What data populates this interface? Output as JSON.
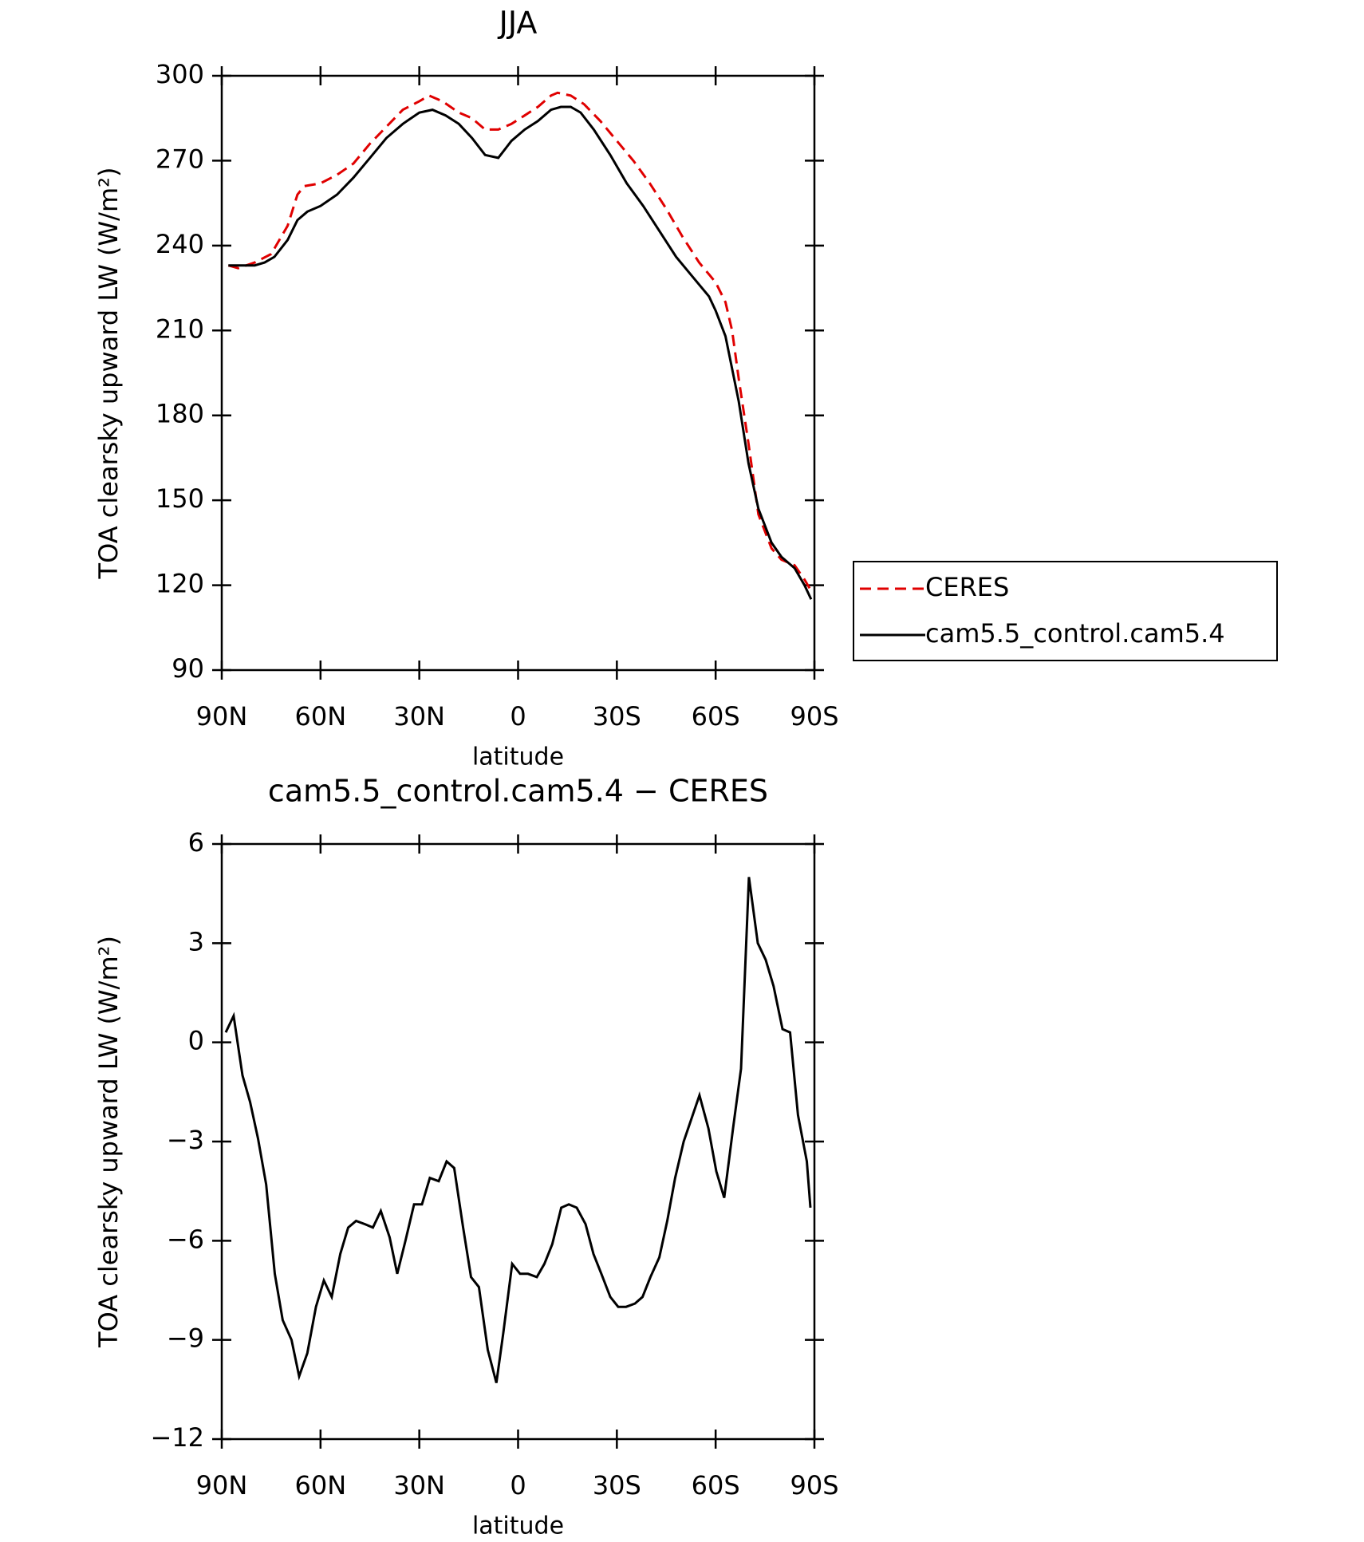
{
  "chart_data": [
    {
      "type": "line",
      "title": "JJA",
      "xlabel": "latitude",
      "ylabel": "TOA clearsky upward LW (W/m²)",
      "xlim": [
        90,
        -90
      ],
      "xticks": [
        {
          "value": 90,
          "label": "90N"
        },
        {
          "value": 60,
          "label": "60N"
        },
        {
          "value": 30,
          "label": "30N"
        },
        0,
        {
          "value": -30,
          "label": "30S"
        },
        {
          "value": -60,
          "label": "60S"
        },
        {
          "value": -90,
          "label": "90S"
        }
      ],
      "ylim": [
        90,
        300
      ],
      "yticks": [
        90,
        120,
        150,
        180,
        210,
        240,
        270,
        300
      ],
      "legend": "right",
      "series": [
        {
          "name": "CERES",
          "color": "#e00000",
          "dash": true,
          "x": [
            88,
            85,
            80,
            75,
            70,
            67,
            65,
            60,
            55,
            50,
            45,
            40,
            35,
            30,
            27,
            23,
            18,
            14,
            10,
            6,
            2,
            -2,
            -6,
            -10,
            -12,
            -16,
            -20,
            -25,
            -30,
            -35,
            -40,
            -45,
            -50,
            -55,
            -60,
            -63,
            -65,
            -67,
            -70,
            -73,
            -77,
            -80,
            -84,
            -87,
            -89
          ],
          "values": [
            233,
            232,
            234,
            237,
            247,
            258,
            261,
            262,
            265,
            269,
            276,
            282,
            288,
            291,
            293,
            291,
            287,
            285,
            281,
            281,
            283,
            286,
            289,
            293,
            294,
            293,
            290,
            284,
            277,
            270,
            262,
            253,
            243,
            234,
            227,
            220,
            210,
            193,
            170,
            145,
            133,
            129,
            127,
            122,
            118
          ]
        },
        {
          "name": "cam5.5_control.cam5.4",
          "color": "#000000",
          "dash": false,
          "x": [
            88,
            85,
            80,
            77,
            74,
            70,
            67,
            64,
            60,
            55,
            50,
            45,
            40,
            35,
            30,
            26,
            22,
            18,
            14,
            10,
            6,
            2,
            -2,
            -6,
            -10,
            -13,
            -16,
            -19,
            -23,
            -28,
            -33,
            -38,
            -43,
            -48,
            -53,
            -58,
            -60,
            -63,
            -67,
            -70,
            -73,
            -77,
            -80,
            -84,
            -87,
            -89
          ],
          "values": [
            233,
            233,
            233,
            234,
            236,
            242,
            249,
            252,
            254,
            258,
            264,
            271,
            278,
            283,
            287,
            288,
            286,
            283,
            278,
            272,
            271,
            277,
            281,
            284,
            288,
            289,
            289,
            287,
            281,
            272,
            262,
            254,
            245,
            236,
            229,
            222,
            217,
            208,
            185,
            163,
            147,
            135,
            130,
            126,
            120,
            115
          ]
        }
      ]
    },
    {
      "type": "line",
      "title": "cam5.5_control.cam5.4 − CERES",
      "xlabel": "latitude",
      "ylabel": "TOA clearsky upward LW (W/m²)",
      "xlim": [
        90,
        -90
      ],
      "xticks": [
        {
          "value": 90,
          "label": "90N"
        },
        {
          "value": 60,
          "label": "60N"
        },
        {
          "value": 30,
          "label": "30N"
        },
        0,
        {
          "value": -30,
          "label": "30S"
        },
        {
          "value": -60,
          "label": "60S"
        },
        {
          "value": -90,
          "label": "90S"
        }
      ],
      "ylim": [
        -12,
        6
      ],
      "yticks": [
        {
          "value": -12,
          "label": "−12"
        },
        {
          "value": -9,
          "label": "−9"
        },
        {
          "value": -6,
          "label": "−6"
        },
        {
          "value": -3,
          "label": "−3"
        },
        0,
        3,
        6
      ],
      "series": [
        {
          "color": "#000000",
          "dash": false,
          "x": [
            88.8,
            86.4,
            83.7,
            81.4,
            79,
            76.5,
            73.9,
            71.5,
            68.8,
            66.5,
            64,
            61.4,
            59,
            56.6,
            54,
            51.6,
            49.2,
            46.5,
            44.1,
            41.7,
            39,
            36.7,
            34.2,
            31.6,
            29.2,
            26.8,
            24.1,
            21.7,
            19.4,
            16.7,
            14.3,
            11.9,
            9.2,
            6.6,
            4.5,
            1.8,
            -0.6,
            -3,
            -5.7,
            -8,
            -10.4,
            -13.1,
            -15.4,
            -17.8,
            -20.5,
            -22.9,
            -25.3,
            -28,
            -30.4,
            -32.8,
            -35.5,
            -37.8,
            -40.2,
            -42.9,
            -45.3,
            -47.7,
            -50.3,
            -52.7,
            -55.1,
            -57.8,
            -60.2,
            -62.6,
            -65.3,
            -67.7,
            -70.1,
            -72.8,
            -75.2,
            -77.6,
            -80.3,
            -82.6,
            -85,
            -87.7,
            -88.8
          ],
          "values": [
            0.3,
            0.8,
            -1.0,
            -1.8,
            -2.9,
            -4.3,
            -7.0,
            -8.4,
            -9.0,
            -10.1,
            -9.4,
            -8.0,
            -7.2,
            -7.7,
            -6.4,
            -5.6,
            -5.4,
            -5.5,
            -5.6,
            -5.1,
            -5.9,
            -7.0,
            -6.0,
            -4.9,
            -4.9,
            -4.1,
            -4.2,
            -3.6,
            -3.8,
            -5.6,
            -7.1,
            -7.4,
            -9.3,
            -10.3,
            -8.8,
            -6.7,
            -7.0,
            -7.0,
            -7.1,
            -6.7,
            -6.1,
            -5.0,
            -4.9,
            -5.0,
            -5.5,
            -6.4,
            -7.0,
            -7.7,
            -8.0,
            -8.0,
            -7.9,
            -7.7,
            -7.1,
            -6.5,
            -5.4,
            -4.1,
            -3.0,
            -2.3,
            -1.6,
            -2.6,
            -3.9,
            -4.7,
            -2.6,
            -0.8,
            5.0,
            3.0,
            2.5,
            1.7,
            0.4,
            0.3,
            -2.2,
            -3.6,
            -5.0
          ]
        }
      ]
    }
  ]
}
